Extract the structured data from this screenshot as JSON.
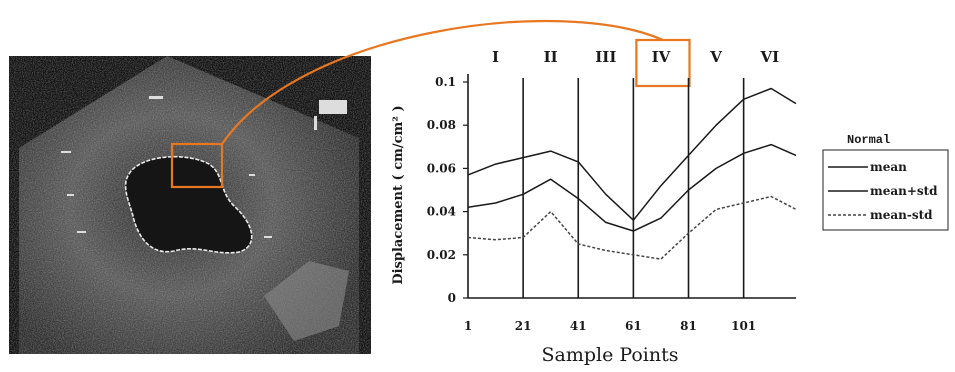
{
  "chart_data": {
    "type": "line",
    "ylabel": "Displacement ( cm/cm² )",
    "xlabel": "Sample Points",
    "xlim": [
      1,
      120
    ],
    "ylim": [
      0,
      0.1
    ],
    "x_ticks": [
      "1",
      "21",
      "41",
      "61",
      "81",
      "101"
    ],
    "y_ticks": [
      "0",
      "0.02",
      "0.04",
      "0.06",
      "0.08",
      "0.1"
    ],
    "segment_labels": [
      "I",
      "II",
      "III",
      "IV",
      "V",
      "VI"
    ],
    "segment_boundaries": [
      21,
      41,
      61,
      81,
      101
    ],
    "highlighted_segment": "IV",
    "legend_title": "Normal",
    "x": [
      1,
      11,
      21,
      31,
      41,
      51,
      61,
      71,
      81,
      91,
      101,
      111,
      120
    ],
    "series": [
      {
        "name": "mean",
        "style": "solid",
        "values": [
          0.042,
          0.044,
          0.048,
          0.055,
          0.046,
          0.035,
          0.031,
          0.037,
          0.05,
          0.06,
          0.067,
          0.071,
          0.066
        ]
      },
      {
        "name": "mean+std",
        "style": "solid",
        "values": [
          0.057,
          0.062,
          0.065,
          0.068,
          0.063,
          0.048,
          0.036,
          0.052,
          0.066,
          0.08,
          0.092,
          0.097,
          0.09
        ]
      },
      {
        "name": "mean-std",
        "style": "dotted",
        "values": [
          0.028,
          0.027,
          0.028,
          0.04,
          0.025,
          0.022,
          0.02,
          0.018,
          0.03,
          0.041,
          0.044,
          0.047,
          0.041
        ]
      }
    ]
  },
  "colors": {
    "highlight": "#e87722",
    "ink": "#1a1a1a",
    "ultrasound_bg": "#0f0f0f"
  }
}
